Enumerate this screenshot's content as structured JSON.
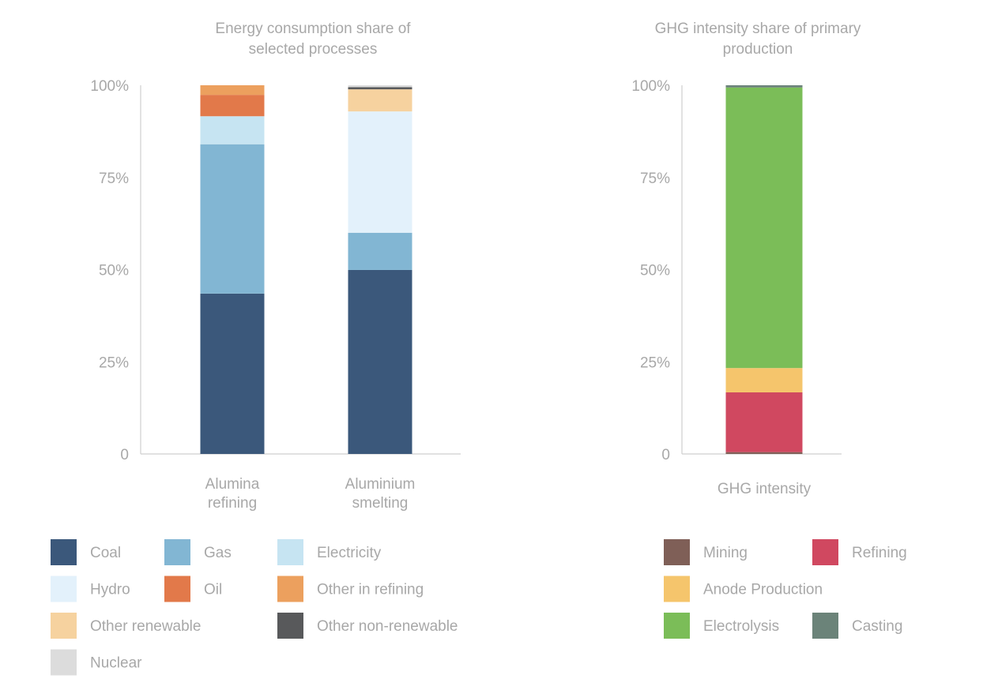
{
  "chart_data": [
    {
      "type": "bar",
      "stacked": true,
      "title": [
        "Energy consumption share of",
        "selected processes"
      ],
      "categories": [
        [
          "Alumina",
          "refining"
        ],
        [
          "Aluminium",
          "smelting"
        ]
      ],
      "ylim": [
        0,
        100
      ],
      "yticks": [
        {
          "value": 0,
          "label": "0"
        },
        {
          "value": 25,
          "label": "25%"
        },
        {
          "value": 50,
          "label": "50%"
        },
        {
          "value": 75,
          "label": "75%"
        },
        {
          "value": 100,
          "label": "100%"
        }
      ],
      "series": [
        {
          "name": "Coal",
          "color": "#3b587b",
          "values": [
            43.5,
            49.9
          ]
        },
        {
          "name": "Gas",
          "color": "#82b6d3",
          "values": [
            40.5,
            10.1
          ]
        },
        {
          "name": "Electricity",
          "color": "#c6e4f2",
          "values": [
            7.6,
            0
          ]
        },
        {
          "name": "Hydro",
          "color": "#e3f1fb",
          "values": [
            0,
            32.9
          ]
        },
        {
          "name": "Oil",
          "color": "#e2794a",
          "values": [
            5.8,
            0
          ]
        },
        {
          "name": "Other in refining",
          "color": "#eca05e",
          "values": [
            2.6,
            0
          ]
        },
        {
          "name": "Other renewable",
          "color": "#f6d29f",
          "values": [
            0,
            6.0
          ]
        },
        {
          "name": "Other non-renewable",
          "color": "#58595b",
          "values": [
            0,
            0.6
          ]
        },
        {
          "name": "Nuclear",
          "color": "#dcdcdc",
          "values": [
            0,
            0.5
          ]
        }
      ],
      "legend": {
        "placement": "bottom",
        "columns": 3
      },
      "grid": false
    },
    {
      "type": "bar",
      "stacked": true,
      "title": [
        "GHG intensity share of primary",
        "production"
      ],
      "categories": [
        [
          "GHG intensity"
        ]
      ],
      "ylim": [
        0,
        100
      ],
      "yticks": [
        {
          "value": 0,
          "label": "0"
        },
        {
          "value": 25,
          "label": "25%"
        },
        {
          "value": 50,
          "label": "50%"
        },
        {
          "value": 75,
          "label": "75%"
        },
        {
          "value": 100,
          "label": "100%"
        }
      ],
      "series": [
        {
          "name": "Mining",
          "color": "#7f5f57",
          "values": [
            0.5
          ]
        },
        {
          "name": "Refining",
          "color": "#d04860",
          "values": [
            16.2
          ]
        },
        {
          "name": "Anode Production",
          "color": "#f5c56c",
          "values": [
            6.6
          ]
        },
        {
          "name": "Electrolysis",
          "color": "#7bbd58",
          "values": [
            76.1
          ]
        },
        {
          "name": "Casting",
          "color": "#6b8379",
          "values": [
            0.6
          ]
        }
      ],
      "legend": {
        "placement": "bottom",
        "columns": 2
      },
      "grid": false
    }
  ]
}
